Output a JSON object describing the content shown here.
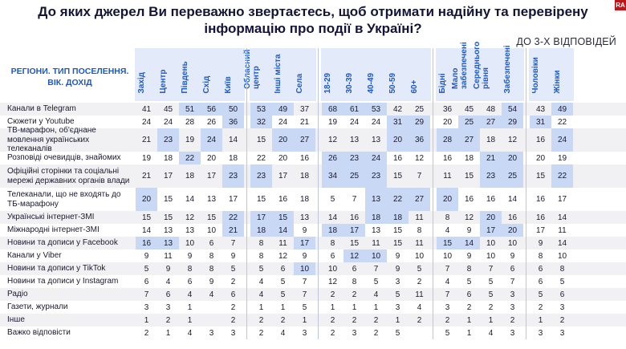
{
  "header": {
    "title_line1": "До яких джерел Ви переважно звертаєтесь, щоб отримати надійну та перевірену",
    "title_line2": "інформацію про події в Україні?",
    "subtitle": "ДО 3-Х ВІДПОВІДЕЙ",
    "corner_label_line1": "РЕГІОНИ. ТИП ПОСЕЛЕННЯ.",
    "corner_label_line2": "ВІК. ДОХІД",
    "logo_text": "RA"
  },
  "colors": {
    "header_bg": "#e3eaf9",
    "highlight": "#c9d8f5",
    "header_text": "#1e59c7",
    "logo": "#c0141b"
  },
  "chart_data": {
    "type": "table",
    "columns": [
      "Захід",
      "Центр",
      "Південь",
      "Схід",
      "Київ",
      "Обласний центр",
      "Інші міста",
      "Села",
      "18-29",
      "30-39",
      "40-49",
      "50-59",
      "60+",
      "Бідні",
      "Мало забезпечені",
      "Середнього рівня",
      "Забезпечені",
      "Чоловіки",
      "Жінки"
    ],
    "groups": [
      [
        0,
        4
      ],
      [
        5,
        7
      ],
      [
        8,
        12
      ],
      [
        13,
        16
      ],
      [
        17,
        18
      ]
    ],
    "rows": [
      {
        "label": "Канали в Telegram",
        "values": [
          41,
          45,
          51,
          56,
          50,
          53,
          49,
          37,
          68,
          61,
          53,
          42,
          25,
          36,
          45,
          48,
          54,
          43,
          49
        ],
        "hl": [
          2,
          3,
          4,
          5,
          6,
          8,
          9,
          10,
          16,
          18
        ]
      },
      {
        "label": "Сюжети у Youtube",
        "values": [
          24,
          24,
          28,
          26,
          36,
          32,
          24,
          21,
          19,
          24,
          24,
          31,
          29,
          20,
          25,
          27,
          29,
          31,
          22
        ],
        "hl": [
          4,
          5,
          11,
          12,
          14,
          15,
          16,
          17
        ]
      },
      {
        "label": "ТВ-марафон, об'єднане мовлення українських телеканалів",
        "values": [
          21,
          23,
          19,
          24,
          14,
          15,
          20,
          27,
          12,
          13,
          13,
          20,
          36,
          28,
          27,
          18,
          12,
          16,
          24
        ],
        "hl": [
          1,
          3,
          6,
          7,
          11,
          12,
          13,
          14,
          18
        ]
      },
      {
        "label": "Розповіді очевидців, знайомих",
        "values": [
          19,
          18,
          22,
          20,
          18,
          22,
          20,
          16,
          26,
          23,
          24,
          16,
          12,
          16,
          18,
          21,
          20,
          20,
          19
        ],
        "hl": [
          2,
          8,
          9,
          10,
          15,
          16
        ]
      },
      {
        "label": "Офіційні сторінки та соціальні мережі державних органів влади",
        "values": [
          21,
          17,
          18,
          17,
          23,
          23,
          17,
          18,
          34,
          25,
          23,
          15,
          7,
          11,
          15,
          23,
          25,
          15,
          22
        ],
        "hl": [
          4,
          5,
          8,
          9,
          10,
          15,
          16,
          18
        ]
      },
      {
        "label": "Телеканали, що не входять до ТБ-марафону",
        "values": [
          20,
          15,
          14,
          13,
          17,
          15,
          16,
          18,
          5,
          7,
          13,
          22,
          27,
          20,
          16,
          16,
          14,
          16,
          17
        ],
        "hl": [
          0,
          10,
          11,
          12,
          13
        ]
      },
      {
        "label": "Українські інтернет-ЗМІ",
        "values": [
          15,
          15,
          12,
          15,
          22,
          17,
          15,
          13,
          14,
          16,
          18,
          18,
          11,
          8,
          12,
          20,
          16,
          16,
          14
        ],
        "hl": [
          4,
          5,
          6,
          10,
          11,
          15
        ]
      },
      {
        "label": "Міжнародні інтернет-ЗМІ",
        "values": [
          14,
          13,
          13,
          10,
          21,
          18,
          14,
          9,
          18,
          17,
          13,
          15,
          8,
          4,
          9,
          17,
          20,
          17,
          11
        ],
        "hl": [
          4,
          5,
          6,
          8,
          9,
          15,
          16
        ]
      },
      {
        "label": "Новини та дописи у Facebook",
        "values": [
          16,
          13,
          10,
          6,
          7,
          8,
          11,
          17,
          8,
          15,
          11,
          15,
          11,
          15,
          14,
          10,
          10,
          9,
          14
        ],
        "hl": [
          0,
          1,
          7,
          13,
          14
        ]
      },
      {
        "label": "Канали у Viber",
        "values": [
          9,
          11,
          9,
          8,
          9,
          8,
          12,
          9,
          6,
          12,
          10,
          9,
          10,
          10,
          9,
          10,
          9,
          8,
          10
        ],
        "hl": [
          9,
          10
        ]
      },
      {
        "label": "Новини та дописи у TikTok",
        "values": [
          5,
          9,
          8,
          8,
          5,
          5,
          6,
          10,
          10,
          6,
          7,
          9,
          5,
          7,
          8,
          7,
          6,
          6,
          8
        ],
        "hl": [
          7
        ]
      },
      {
        "label": "Новини та дописи у Instagram",
        "values": [
          6,
          4,
          6,
          9,
          2,
          4,
          5,
          7,
          12,
          8,
          5,
          3,
          2,
          4,
          5,
          5,
          7,
          6,
          5
        ],
        "hl": []
      },
      {
        "label": "Радіо",
        "values": [
          7,
          6,
          4,
          4,
          6,
          4,
          5,
          7,
          2,
          2,
          4,
          5,
          11,
          7,
          6,
          5,
          3,
          5,
          6
        ],
        "hl": []
      },
      {
        "label": "Газети, журнали",
        "values": [
          3,
          3,
          1,
          "",
          2,
          1,
          1,
          5,
          1,
          1,
          1,
          3,
          4,
          3,
          2,
          2,
          3,
          2,
          3
        ],
        "hl": []
      },
      {
        "label": "Інше",
        "values": [
          1,
          2,
          1,
          "",
          2,
          2,
          2,
          1,
          2,
          2,
          2,
          1,
          2,
          2,
          1,
          1,
          2,
          1,
          2
        ],
        "hl": []
      },
      {
        "label": "Важко відповісти",
        "values": [
          2,
          1,
          4,
          3,
          3,
          2,
          4,
          3,
          2,
          3,
          2,
          5,
          "",
          5,
          1,
          4,
          3,
          3,
          3
        ],
        "hl": []
      }
    ]
  }
}
